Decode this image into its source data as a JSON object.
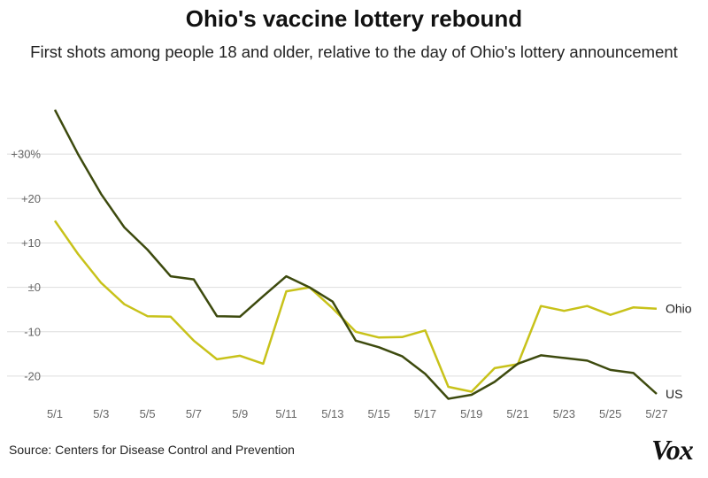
{
  "title": "Ohio's vaccine lottery rebound",
  "subtitle": "First shots among people 18 and older, relative to the day of Ohio's lottery announcement",
  "source": "Source: Centers for Disease Control and Prevention",
  "logo": "Vox",
  "chart_data": {
    "type": "line",
    "x": [
      "5/1",
      "5/2",
      "5/3",
      "5/4",
      "5/5",
      "5/6",
      "5/7",
      "5/8",
      "5/9",
      "5/10",
      "5/11",
      "5/12",
      "5/13",
      "5/14",
      "5/15",
      "5/16",
      "5/17",
      "5/18",
      "5/19",
      "5/20",
      "5/21",
      "5/22",
      "5/23",
      "5/24",
      "5/25",
      "5/26",
      "5/27"
    ],
    "x_tick_labels": [
      "5/1",
      "5/3",
      "5/5",
      "5/7",
      "5/9",
      "5/11",
      "5/13",
      "5/15",
      "5/17",
      "5/19",
      "5/21",
      "5/23",
      "5/25",
      "5/27"
    ],
    "y_tick_values": [
      30,
      20,
      10,
      0,
      -10,
      -20
    ],
    "y_tick_labels": [
      "+30%",
      "+20",
      "+10",
      "±0",
      "-10",
      "-20"
    ],
    "ylim": [
      -25,
      40
    ],
    "grid": true,
    "legend": "direct labels at line ends",
    "series": [
      {
        "name": "Ohio",
        "color": "#c8c21a",
        "values": [
          15,
          7.5,
          1,
          -3.8,
          -6.5,
          -6.6,
          -12,
          -16.2,
          -15.4,
          -17.2,
          -0.9,
          0,
          -4.7,
          -10,
          -11.3,
          -11.2,
          -9.7,
          -22.4,
          -23.5,
          -18.2,
          -17.3,
          -4.2,
          -5.3,
          -4.2,
          -6.2,
          -4.5,
          -4.8
        ]
      },
      {
        "name": "US",
        "color": "#3d4a0e",
        "values": [
          40,
          30,
          21,
          13.5,
          8.5,
          2.5,
          1.8,
          -6.5,
          -6.6,
          -2,
          2.5,
          0,
          -3.2,
          -12,
          -13.5,
          -15.5,
          -19.5,
          -25.1,
          -24.2,
          -21.3,
          -17.2,
          -15.3,
          -15.9,
          -16.5,
          -18.6,
          -19.3,
          -24
        ]
      }
    ]
  }
}
